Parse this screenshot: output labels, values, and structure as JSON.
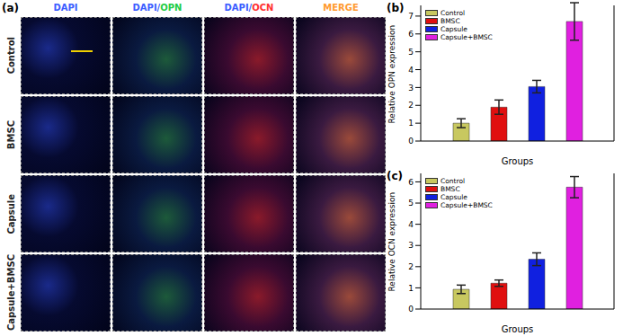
{
  "figure_a": {
    "label": "(a)",
    "columns": [
      "DAPI",
      "DAPI/OPN",
      "DAPI/OCN",
      "MERGE"
    ],
    "rows": [
      "Control",
      "BMSC",
      "Capsule",
      "Capsule+BMSC"
    ]
  },
  "chart_data": [
    {
      "type": "bar",
      "title": "(b)",
      "x_label": "Groups",
      "y_label": "Relative OPN expression",
      "categories": [
        null
      ],
      "series": [
        {
          "name": "Control",
          "color": "#c8c860",
          "values": [
            1.0
          ],
          "errors": [
            0.25
          ]
        },
        {
          "name": "BMSC",
          "color": "#e01010",
          "values": [
            1.9
          ],
          "errors": [
            0.4
          ]
        },
        {
          "name": "Capsule",
          "color": "#1020e0",
          "values": [
            3.05
          ],
          "errors": [
            0.35
          ]
        },
        {
          "name": "Capsule+BMSC",
          "color": "#e020e0",
          "values": [
            6.7
          ],
          "errors": [
            1.05
          ]
        }
      ],
      "ylim": [
        0,
        7.6
      ],
      "yticks": [
        0,
        1,
        2,
        3,
        4,
        5,
        6,
        7
      ],
      "legend": "upper left",
      "tick_labels": "y"
    },
    {
      "type": "bar",
      "title": "(c)",
      "x_label": "Groups",
      "y_label": "Relative OCN expression",
      "categories": [
        null
      ],
      "series": [
        {
          "name": "Control",
          "color": "#c8c860",
          "values": [
            0.93
          ],
          "errors": [
            0.2
          ]
        },
        {
          "name": "BMSC",
          "color": "#e01010",
          "values": [
            1.22
          ],
          "errors": [
            0.15
          ]
        },
        {
          "name": "Capsule",
          "color": "#1020e0",
          "values": [
            2.35
          ],
          "errors": [
            0.3
          ]
        },
        {
          "name": "Capsule+BMSC",
          "color": "#e020e0",
          "values": [
            5.75
          ],
          "errors": [
            0.5
          ]
        }
      ],
      "ylim": [
        0,
        6.4
      ],
      "yticks": [
        0,
        1,
        2,
        3,
        4,
        5,
        6
      ],
      "legend": "upper left",
      "tick_labels": "y"
    }
  ]
}
